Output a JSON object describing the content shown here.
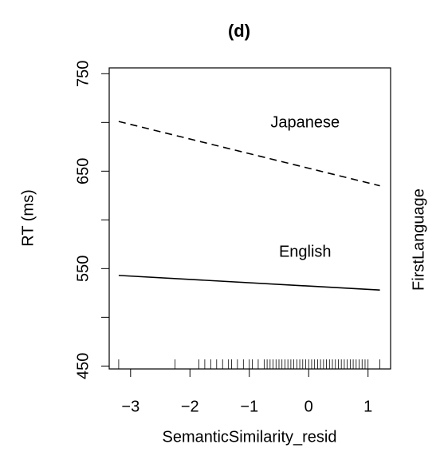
{
  "chart_data": {
    "type": "line",
    "title": "(d)",
    "x_label": "SemanticSimilarity_resid",
    "y_label": "RT (ms)",
    "right_label": "FirstLanguage",
    "x": [
      -3.2,
      1.2
    ],
    "series": [
      {
        "name": "Japanese",
        "color": "#000000",
        "dash": "dashed",
        "values": [
          701,
          635
        ]
      },
      {
        "name": "English",
        "color": "#000000",
        "dash": "solid",
        "values": [
          543,
          528
        ]
      }
    ],
    "xlim": [
      -3.36,
      1.38
    ],
    "xticks": [
      {
        "value": -3,
        "label": "−3"
      },
      {
        "value": -2,
        "label": "−2"
      },
      {
        "value": -1,
        "label": "−1"
      },
      0,
      1
    ],
    "ylim": [
      447,
      756
    ],
    "yticks": [
      450,
      550,
      650,
      750
    ],
    "yminor_ticks": [
      500,
      600,
      700
    ],
    "rug": [
      -3.2,
      -2.25,
      -1.85,
      -1.75,
      -1.65,
      -1.55,
      -1.45,
      -1.35,
      -1.3,
      -1.2,
      -1.1,
      -1.0,
      -0.95,
      -0.85,
      -0.75,
      -0.7,
      -0.65,
      -0.6,
      -0.55,
      -0.5,
      -0.45,
      -0.4,
      -0.35,
      -0.3,
      -0.25,
      -0.2,
      -0.15,
      -0.1,
      -0.05,
      0,
      0.05,
      0.1,
      0.15,
      0.2,
      0.25,
      0.3,
      0.35,
      0.4,
      0.45,
      0.5,
      0.55,
      0.6,
      0.65,
      0.7,
      0.75,
      0.8,
      0.85,
      0.9,
      0.95,
      1.0,
      1.2
    ],
    "grid": false
  }
}
